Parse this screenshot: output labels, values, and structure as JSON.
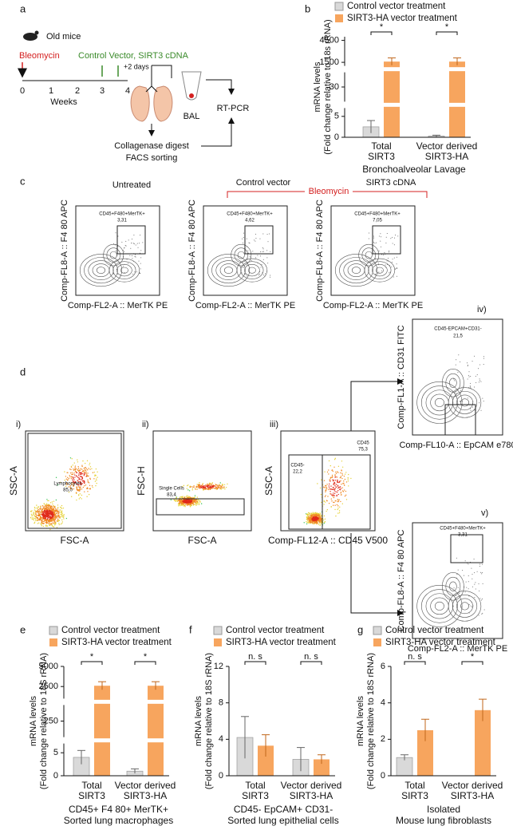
{
  "panel_labels": [
    "a",
    "b",
    "c",
    "d",
    "e",
    "f",
    "g"
  ],
  "schematic": {
    "mouse_label": "Old mice",
    "treatment_1": "Bleomycin",
    "treatment_2": "Control Vector, SIRT3 cDNA",
    "delay": "+2 days",
    "timeline_ticks": [
      "0",
      "1",
      "2",
      "3",
      "4"
    ],
    "timeline_label": "Weeks",
    "sample": "BAL",
    "assay": "RT-PCR",
    "processing": [
      "Collagenase digest",
      "FACS sorting"
    ]
  },
  "flow_c": {
    "titles": [
      "Untreated",
      "Control vector",
      "SIRT3 cDNA"
    ],
    "bracket": "Bleomycin",
    "y_label": "Comp-FL8-A :: F4 80 APC",
    "x_label": "Comp-FL2-A :: MerTK PE",
    "gate": "CD45+F480+MerTK+",
    "gate_values": [
      "3,31",
      "4,62",
      "7,05"
    ]
  },
  "flow_d": [
    {
      "roman": "i)",
      "y_label": "SSC-A",
      "x_label": "FSC-A",
      "gates": [
        {
          "name": "Lymphocytes",
          "value": "85,0"
        }
      ]
    },
    {
      "roman": "ii)",
      "y_label": "FSC-H",
      "x_label": "FSC-A",
      "gates": [
        {
          "name": "Single Cells",
          "value": "83,4"
        }
      ]
    },
    {
      "roman": "iii)",
      "y_label": "SSC-A",
      "x_label": "Comp-FL12-A :: CD45 V500",
      "gates": [
        {
          "name": "CD45-",
          "value": "22,2"
        },
        {
          "name": "CD45",
          "value": "75,3"
        }
      ]
    },
    {
      "roman": "iv)",
      "y_label": "Comp-FL1-A :: CD31 FITC",
      "x_label": "Comp-FL10-A :: EpCAM e780",
      "gates": [
        {
          "name": "CD45-EPCAM+CD31-",
          "value": "21,5"
        }
      ]
    },
    {
      "roman": "v)",
      "y_label": "Comp-FL8-A :: F4 80 APC",
      "x_label": "Comp-FL2-A :: MerTK PE",
      "gates": [
        {
          "name": "CD45+F480+MerTK+",
          "value": "3,31"
        }
      ]
    }
  ],
  "chart_data": [
    {
      "type": "bar",
      "y_label": [
        "mRNA levels",
        "(Fold change relative to 18s rRNA)"
      ],
      "categories": [
        [
          "Total",
          "SIRT3"
        ],
        [
          "Vector derived",
          "SIRT3-HA"
        ]
      ],
      "caption": [
        "Bronchoalveolar Lavage"
      ],
      "significance": [
        "*",
        "*"
      ],
      "ylim": [
        0,
        5000
      ],
      "ysegments": [
        [
          0,
          7
        ],
        [
          20,
          40
        ],
        [
          1000,
          5000
        ]
      ],
      "yticks": [
        0,
        5,
        30,
        1500,
        4500
      ],
      "series": [
        {
          "name": "Control vector treatment",
          "color": "#d9d9d9",
          "values": [
            2.5,
            0.3
          ],
          "errors": [
            1.5,
            0.2
          ]
        },
        {
          "name": "SIRT3-HA vector treatment",
          "color": "#f7a55e",
          "values": [
            1600,
            1600
          ],
          "errors": [
            500,
            500
          ]
        }
      ]
    },
    {
      "type": "bar",
      "y_label": [
        "mRNA levels",
        "(Fold change relative to 18S rRNA)"
      ],
      "categories": [
        [
          "Total",
          "SIRT3"
        ],
        [
          "Vector derived",
          "SIRT3-HA"
        ]
      ],
      "caption": [
        "CD45+ F4 80+ MerTK+",
        "Sorted lung macrophages"
      ],
      "significance": [
        "*",
        "*"
      ],
      "ylim": [
        0,
        5000
      ],
      "ysegments": [
        [
          0,
          7
        ],
        [
          200,
          300
        ],
        [
          1000,
          5000
        ]
      ],
      "yticks": [
        0,
        5,
        250,
        2500,
        5000
      ],
      "series": [
        {
          "name": "Control vector treatment",
          "color": "#d9d9d9",
          "values": [
            4,
            1
          ],
          "errors": [
            1.5,
            0.5
          ]
        },
        {
          "name": "SIRT3-HA vector treatment",
          "color": "#f7a55e",
          "values": [
            2600,
            2600
          ],
          "errors": [
            500,
            500
          ]
        }
      ]
    },
    {
      "type": "bar",
      "y_label": [
        "mRNA levels",
        "(Fold change relative to 18S rRNA)"
      ],
      "categories": [
        [
          "Total",
          "SIRT3"
        ],
        [
          "Vector derived",
          "SIRT3-HA"
        ]
      ],
      "caption": [
        "CD45- EpCAM+ CD31-",
        "Sorted lung epithelial cells"
      ],
      "significance": [
        "n. s",
        "n. s"
      ],
      "ylim": [
        0,
        12
      ],
      "yticks": [
        0,
        4,
        8,
        12
      ],
      "series": [
        {
          "name": "Control vector treatment",
          "color": "#d9d9d9",
          "values": [
            4.2,
            1.8
          ],
          "errors": [
            2.3,
            1.3
          ]
        },
        {
          "name": "SIRT3-HA vector treatment",
          "color": "#f7a55e",
          "values": [
            3.3,
            1.8
          ],
          "errors": [
            1.2,
            0.5
          ]
        }
      ]
    },
    {
      "type": "bar",
      "y_label": [
        "mRNA levels",
        "(Fold change relative to 18S rRNA)"
      ],
      "categories": [
        [
          "Total",
          "SIRT3"
        ],
        [
          "Vector derived",
          "SIRT3-HA"
        ]
      ],
      "caption": [
        "Isolated",
        "Mouse lung fibroblasts"
      ],
      "significance": [
        "n. s",
        "*"
      ],
      "ylim": [
        0,
        6
      ],
      "yticks": [
        0,
        2,
        4,
        6
      ],
      "series": [
        {
          "name": "Control vector treatment",
          "color": "#d9d9d9",
          "values": [
            1.0,
            0
          ],
          "errors": [
            0.15,
            0
          ]
        },
        {
          "name": "SIRT3-HA vector treatment",
          "color": "#f7a55e",
          "values": [
            2.5,
            3.6
          ],
          "errors": [
            0.6,
            0.6
          ]
        }
      ]
    }
  ]
}
